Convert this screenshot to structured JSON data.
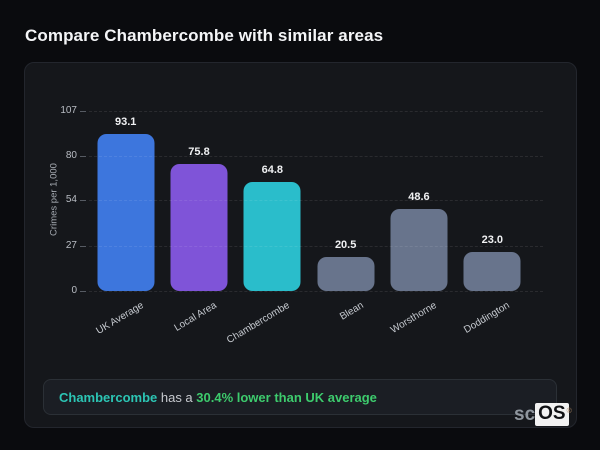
{
  "title": "Compare Chambercombe with similar areas",
  "chart_data": {
    "type": "bar",
    "categories": [
      "UK Average",
      "Local Area",
      "Chambercombe",
      "Blean",
      "Worsthorne",
      "Doddington"
    ],
    "values": [
      93.1,
      75.8,
      64.8,
      20.5,
      48.6,
      23.0
    ],
    "value_labels": [
      "93.1",
      "75.8",
      "64.8",
      "20.5",
      "48.6",
      "23.0"
    ],
    "bar_colors": [
      "#3d76dd",
      "#7f54d8",
      "#2abdcb",
      "#68748c",
      "#68748c",
      "#68748c"
    ],
    "title": "",
    "xlabel": "",
    "ylabel": "Crimes per 1,000",
    "ylim": [
      0,
      107
    ],
    "yticks": [
      0,
      27,
      54,
      80,
      107
    ],
    "grid": "dashed-horizontal",
    "legend": "none"
  },
  "footer": {
    "area": "Chambercombe",
    "connector": " has a ",
    "stat": "30.4% lower than UK average",
    "area_color": "#2cc5b4",
    "stat_color": "#3dcb6d"
  },
  "watermark": {
    "prefix": "sc",
    "suffix": "OS",
    "reg": "®"
  }
}
